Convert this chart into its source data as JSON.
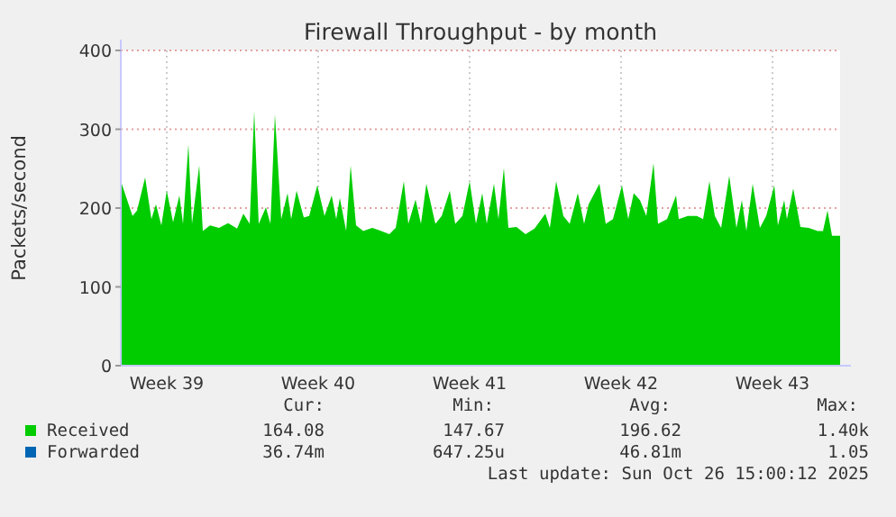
{
  "chart_data": {
    "type": "area",
    "title": "Firewall Throughput - by month",
    "ylabel": "Packets/second",
    "xlim": [
      "2025-09-23T09:00",
      "2025-10-26T15:00"
    ],
    "ylim": [
      0,
      400
    ],
    "xticks": [
      {
        "value": "2025-09-25T12:00",
        "label": "Week 39"
      },
      {
        "value": "2025-10-02T12:00",
        "label": "Week 40"
      },
      {
        "value": "2025-10-09T12:00",
        "label": "Week 41"
      },
      {
        "value": "2025-10-16T12:00",
        "label": "Week 42"
      },
      {
        "value": "2025-10-23T12:00",
        "label": "Week 43"
      }
    ],
    "yticks": [
      0,
      100,
      200,
      300,
      400
    ],
    "grid": true,
    "legend": "bottom",
    "series": [
      {
        "name": "Received",
        "color": "#00cc00",
        "x": [
          "2025-09-23T10:00",
          "2025-09-23T22:00",
          "2025-09-24T03:00",
          "2025-09-24T12:00",
          "2025-09-24T19:00",
          "2025-09-25T00:00",
          "2025-09-25T06:00",
          "2025-09-25T12:00",
          "2025-09-25T19:00",
          "2025-09-26T02:00",
          "2025-09-26T06:00",
          "2025-09-26T12:00",
          "2025-09-26T16:00",
          "2025-09-27T00:00",
          "2025-09-27T04:00",
          "2025-09-27T12:00",
          "2025-09-27T22:00",
          "2025-09-28T08:00",
          "2025-09-28T18:00",
          "2025-09-29T01:00",
          "2025-09-29T08:00",
          "2025-09-29T13:00",
          "2025-09-29T18:00",
          "2025-09-30T02:00",
          "2025-09-30T07:00",
          "2025-09-30T12:00",
          "2025-09-30T19:00",
          "2025-10-01T02:00",
          "2025-10-01T06:00",
          "2025-10-01T12:00",
          "2025-10-01T20:00",
          "2025-10-02T02:00",
          "2025-10-02T11:00",
          "2025-10-02T19:00",
          "2025-10-03T03:00",
          "2025-10-03T08:00",
          "2025-10-03T12:00",
          "2025-10-03T19:00",
          "2025-10-04T00:00",
          "2025-10-04T06:00",
          "2025-10-04T14:00",
          "2025-10-05T00:00",
          "2025-10-05T10:00",
          "2025-10-05T19:00",
          "2025-10-06T02:00",
          "2025-10-06T11:00",
          "2025-10-06T16:00",
          "2025-10-07T00:00",
          "2025-10-07T06:00",
          "2025-10-07T12:00",
          "2025-10-07T22:00",
          "2025-10-08T05:00",
          "2025-10-08T14:00",
          "2025-10-08T20:00",
          "2025-10-09T04:00",
          "2025-10-09T12:00",
          "2025-10-09T19:00",
          "2025-10-10T02:00",
          "2025-10-10T07:00",
          "2025-10-10T15:00",
          "2025-10-10T20:00",
          "2025-10-11T02:00",
          "2025-10-11T07:00",
          "2025-10-11T16:00",
          "2025-10-12T02:00",
          "2025-10-12T12:00",
          "2025-10-13T00:00",
          "2025-10-13T05:00",
          "2025-10-13T12:00",
          "2025-10-13T20:00",
          "2025-10-14T03:00",
          "2025-10-14T12:00",
          "2025-10-14T19:00",
          "2025-10-15T00:00",
          "2025-10-15T12:00",
          "2025-10-15T19:00",
          "2025-10-16T03:00",
          "2025-10-16T13:00",
          "2025-10-16T20:00",
          "2025-10-17T02:00",
          "2025-10-17T09:00",
          "2025-10-17T16:00",
          "2025-10-18T00:00",
          "2025-10-18T05:00",
          "2025-10-18T15:00",
          "2025-10-19T01:00",
          "2025-10-19T04:00",
          "2025-10-19T14:00",
          "2025-10-20T00:00",
          "2025-10-20T07:00",
          "2025-10-20T14:00",
          "2025-10-20T20:00",
          "2025-10-21T03:00",
          "2025-10-21T12:00",
          "2025-10-21T20:00",
          "2025-10-22T02:00",
          "2025-10-22T07:00",
          "2025-10-22T14:00",
          "2025-10-22T22:00",
          "2025-10-23T05:00",
          "2025-10-23T14:00",
          "2025-10-23T18:00",
          "2025-10-24T01:00",
          "2025-10-24T04:00",
          "2025-10-24T11:00",
          "2025-10-24T19:00",
          "2025-10-25T04:00",
          "2025-10-25T14:00",
          "2025-10-25T20:00",
          "2025-10-26T01:00",
          "2025-10-26T06:00",
          "2025-10-26T15:00"
        ],
        "values": [
          231,
          190,
          197,
          239,
          186,
          205,
          178,
          222,
          182,
          216,
          180,
          281,
          180,
          254,
          171,
          178,
          175,
          181,
          174,
          193,
          180,
          323,
          180,
          201,
          180,
          319,
          186,
          219,
          186,
          222,
          188,
          190,
          229,
          190,
          216,
          186,
          213,
          171,
          254,
          178,
          171,
          175,
          171,
          167,
          175,
          234,
          180,
          211,
          180,
          231,
          180,
          190,
          222,
          180,
          190,
          234,
          180,
          219,
          180,
          231,
          186,
          251,
          175,
          176,
          167,
          174,
          193,
          175,
          234,
          190,
          180,
          219,
          180,
          205,
          231,
          180,
          186,
          229,
          186,
          219,
          210,
          190,
          257,
          180,
          186,
          216,
          186,
          190,
          190,
          186,
          234,
          190,
          175,
          241,
          175,
          210,
          171,
          231,
          175,
          190,
          229,
          178,
          210,
          186,
          225,
          176,
          175,
          171,
          171,
          197,
          165,
          165
        ]
      },
      {
        "name": "Forwarded",
        "color": "#0066b3"
      }
    ],
    "annotations": [
      "Cur:",
      "Min:",
      "Avg:",
      "Max:",
      "164.08",
      "147.67",
      "196.62",
      "1.40k",
      "36.74m",
      "647.25u",
      "46.81m",
      "1.05",
      "Last update: Sun Oct 26 15:00:12 2025"
    ]
  }
}
